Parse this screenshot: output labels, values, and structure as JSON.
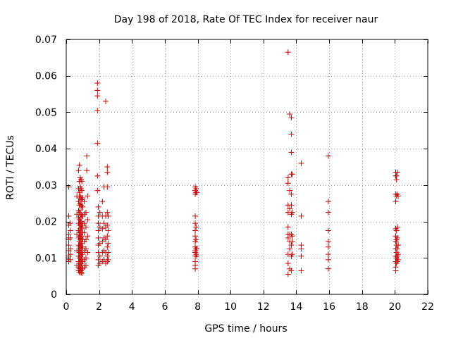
{
  "chart_data": {
    "type": "scatter",
    "title": "Day 198 of 2018, Rate Of TEC Index for receiver naur",
    "xlabel": "GPS time / hours",
    "ylabel": "ROTI / TECUs",
    "xlim": [
      0,
      22
    ],
    "ylim": [
      0,
      0.07
    ],
    "x_ticks": [
      0,
      2,
      4,
      6,
      8,
      10,
      12,
      14,
      16,
      18,
      20,
      22
    ],
    "y_ticks": [
      0,
      0.01,
      0.02,
      0.03,
      0.04,
      0.05,
      0.06,
      0.07
    ],
    "x_tick_labels": [
      "0",
      "2",
      "4",
      "6",
      "8",
      "10",
      "12",
      "14",
      "16",
      "18",
      "20",
      "22"
    ],
    "y_tick_labels": [
      "0",
      "0.01",
      "0.02",
      "0.03",
      "0.04",
      "0.05",
      "0.06",
      "0.07"
    ],
    "grid": true,
    "marker": "+",
    "marker_color": "#cc0000",
    "series": [
      {
        "name": "ROTI",
        "points": [
          [
            0.15,
            0.0295
          ],
          [
            0.15,
            0.0215
          ],
          [
            0.15,
            0.019
          ],
          [
            0.15,
            0.0165
          ],
          [
            0.15,
            0.0155
          ],
          [
            0.15,
            0.015
          ],
          [
            0.15,
            0.0135
          ],
          [
            0.15,
            0.012
          ],
          [
            0.15,
            0.0105
          ],
          [
            0.15,
            0.0095
          ],
          [
            0.15,
            0.009
          ],
          [
            0.25,
            0.0195
          ],
          [
            0.25,
            0.0175
          ],
          [
            0.25,
            0.0155
          ],
          [
            0.25,
            0.0125
          ],
          [
            0.25,
            0.011
          ],
          [
            0.25,
            0.0095
          ],
          [
            0.65,
            0.027
          ],
          [
            0.65,
            0.022
          ],
          [
            0.65,
            0.0165
          ],
          [
            0.65,
            0.012
          ],
          [
            0.65,
            0.008
          ],
          [
            0.75,
            0.034
          ],
          [
            0.75,
            0.029
          ],
          [
            0.75,
            0.0255
          ],
          [
            0.75,
            0.023
          ],
          [
            0.75,
            0.021
          ],
          [
            0.75,
            0.0195
          ],
          [
            0.75,
            0.0175
          ],
          [
            0.75,
            0.0155
          ],
          [
            0.75,
            0.0135
          ],
          [
            0.75,
            0.012
          ],
          [
            0.75,
            0.0105
          ],
          [
            0.75,
            0.009
          ],
          [
            0.75,
            0.0075
          ],
          [
            0.75,
            0.0065
          ],
          [
            0.8,
            0.0355
          ],
          [
            0.8,
            0.031
          ],
          [
            0.8,
            0.028
          ],
          [
            0.8,
            0.0265
          ],
          [
            0.8,
            0.0245
          ],
          [
            0.8,
            0.0225
          ],
          [
            0.8,
            0.0205
          ],
          [
            0.8,
            0.019
          ],
          [
            0.8,
            0.017
          ],
          [
            0.8,
            0.016
          ],
          [
            0.8,
            0.0145
          ],
          [
            0.8,
            0.013
          ],
          [
            0.8,
            0.0115
          ],
          [
            0.8,
            0.01
          ],
          [
            0.8,
            0.0085
          ],
          [
            0.8,
            0.007
          ],
          [
            0.8,
            0.006
          ],
          [
            0.85,
            0.032
          ],
          [
            0.85,
            0.0295
          ],
          [
            0.85,
            0.027
          ],
          [
            0.85,
            0.025
          ],
          [
            0.85,
            0.023
          ],
          [
            0.85,
            0.021
          ],
          [
            0.85,
            0.0195
          ],
          [
            0.85,
            0.018
          ],
          [
            0.85,
            0.0165
          ],
          [
            0.85,
            0.015
          ],
          [
            0.85,
            0.0135
          ],
          [
            0.85,
            0.012
          ],
          [
            0.85,
            0.0105
          ],
          [
            0.85,
            0.009
          ],
          [
            0.85,
            0.0075
          ],
          [
            0.85,
            0.0065
          ],
          [
            0.9,
            0.0315
          ],
          [
            0.9,
            0.029
          ],
          [
            0.9,
            0.0265
          ],
          [
            0.9,
            0.0245
          ],
          [
            0.9,
            0.022
          ],
          [
            0.9,
            0.02
          ],
          [
            0.9,
            0.0185
          ],
          [
            0.9,
            0.017
          ],
          [
            0.9,
            0.0155
          ],
          [
            0.9,
            0.014
          ],
          [
            0.9,
            0.0125
          ],
          [
            0.9,
            0.011
          ],
          [
            0.9,
            0.0095
          ],
          [
            0.9,
            0.008
          ],
          [
            0.9,
            0.0065
          ],
          [
            0.9,
            0.006
          ],
          [
            0.95,
            0.031
          ],
          [
            0.95,
            0.0285
          ],
          [
            0.95,
            0.026
          ],
          [
            0.95,
            0.024
          ],
          [
            0.95,
            0.0215
          ],
          [
            0.95,
            0.0195
          ],
          [
            0.95,
            0.018
          ],
          [
            0.95,
            0.016
          ],
          [
            0.95,
            0.0145
          ],
          [
            0.95,
            0.013
          ],
          [
            0.95,
            0.0115
          ],
          [
            0.95,
            0.01
          ],
          [
            0.95,
            0.0085
          ],
          [
            0.95,
            0.007
          ],
          [
            0.95,
            0.0058
          ],
          [
            1.0,
            0.0265
          ],
          [
            1.0,
            0.024
          ],
          [
            1.0,
            0.0215
          ],
          [
            1.0,
            0.019
          ],
          [
            1.0,
            0.017
          ],
          [
            1.0,
            0.015
          ],
          [
            1.0,
            0.013
          ],
          [
            1.0,
            0.011
          ],
          [
            1.0,
            0.009
          ],
          [
            1.0,
            0.007
          ],
          [
            1.1,
            0.0255
          ],
          [
            1.1,
            0.022
          ],
          [
            1.1,
            0.0195
          ],
          [
            1.1,
            0.017
          ],
          [
            1.1,
            0.0145
          ],
          [
            1.1,
            0.012
          ],
          [
            1.1,
            0.0095
          ],
          [
            1.1,
            0.0075
          ],
          [
            1.2,
            0.0225
          ],
          [
            1.2,
            0.0185
          ],
          [
            1.2,
            0.015
          ],
          [
            1.2,
            0.0125
          ],
          [
            1.2,
            0.01
          ],
          [
            1.2,
            0.008
          ],
          [
            1.25,
            0.038
          ],
          [
            1.25,
            0.034
          ],
          [
            1.3,
            0.027
          ],
          [
            1.3,
            0.0205
          ],
          [
            1.3,
            0.016
          ],
          [
            1.3,
            0.0115
          ],
          [
            1.9,
            0.058
          ],
          [
            1.9,
            0.056
          ],
          [
            1.9,
            0.0545
          ],
          [
            1.9,
            0.0505
          ],
          [
            1.9,
            0.0415
          ],
          [
            1.9,
            0.0325
          ],
          [
            1.9,
            0.0285
          ],
          [
            1.95,
            0.024
          ],
          [
            1.95,
            0.0215
          ],
          [
            1.95,
            0.0195
          ],
          [
            1.95,
            0.0175
          ],
          [
            1.95,
            0.0155
          ],
          [
            1.95,
            0.0135
          ],
          [
            1.95,
            0.0115
          ],
          [
            1.95,
            0.0095
          ],
          [
            1.95,
            0.008
          ],
          [
            2.05,
            0.0225
          ],
          [
            2.05,
            0.0185
          ],
          [
            2.05,
            0.014
          ],
          [
            2.05,
            0.0105
          ],
          [
            2.05,
            0.0085
          ],
          [
            2.2,
            0.0255
          ],
          [
            2.2,
            0.0215
          ],
          [
            2.2,
            0.018
          ],
          [
            2.2,
            0.0145
          ],
          [
            2.2,
            0.0115
          ],
          [
            2.2,
            0.009
          ],
          [
            2.3,
            0.0295
          ],
          [
            2.3,
            0.0195
          ],
          [
            2.3,
            0.0155
          ],
          [
            2.3,
            0.012
          ],
          [
            2.3,
            0.0095
          ],
          [
            2.4,
            0.053
          ],
          [
            2.4,
            0.0215
          ],
          [
            2.4,
            0.0185
          ],
          [
            2.4,
            0.015
          ],
          [
            2.4,
            0.0115
          ],
          [
            2.4,
            0.0085
          ],
          [
            2.5,
            0.035
          ],
          [
            2.5,
            0.0335
          ],
          [
            2.5,
            0.0295
          ],
          [
            2.5,
            0.0225
          ],
          [
            2.5,
            0.019
          ],
          [
            2.5,
            0.016
          ],
          [
            2.5,
            0.013
          ],
          [
            2.5,
            0.0105
          ],
          [
            2.5,
            0.009
          ],
          [
            2.55,
            0.0215
          ],
          [
            2.55,
            0.0175
          ],
          [
            2.55,
            0.014
          ],
          [
            2.55,
            0.0115
          ],
          [
            2.55,
            0.0095
          ],
          [
            7.85,
            0.0295
          ],
          [
            7.85,
            0.0285
          ],
          [
            7.85,
            0.0275
          ],
          [
            7.85,
            0.0215
          ],
          [
            7.85,
            0.0195
          ],
          [
            7.85,
            0.0175
          ],
          [
            7.85,
            0.016
          ],
          [
            7.85,
            0.0145
          ],
          [
            7.85,
            0.013
          ],
          [
            7.85,
            0.012
          ],
          [
            7.85,
            0.0115
          ],
          [
            7.85,
            0.0105
          ],
          [
            7.85,
            0.009
          ],
          [
            7.85,
            0.008
          ],
          [
            7.85,
            0.007
          ],
          [
            7.9,
            0.029
          ],
          [
            7.9,
            0.028
          ],
          [
            7.9,
            0.0185
          ],
          [
            7.9,
            0.015
          ],
          [
            7.9,
            0.0125
          ],
          [
            7.9,
            0.011
          ],
          [
            7.95,
            0.028
          ],
          [
            7.95,
            0.0125
          ],
          [
            7.95,
            0.0105
          ],
          [
            13.5,
            0.0665
          ],
          [
            13.5,
            0.032
          ],
          [
            13.5,
            0.0305
          ],
          [
            13.5,
            0.0245
          ],
          [
            13.5,
            0.0225
          ],
          [
            13.5,
            0.0185
          ],
          [
            13.5,
            0.0165
          ],
          [
            13.5,
            0.0155
          ],
          [
            13.5,
            0.011
          ],
          [
            13.5,
            0.0085
          ],
          [
            13.5,
            0.0055
          ],
          [
            13.6,
            0.0495
          ],
          [
            13.6,
            0.0285
          ],
          [
            13.6,
            0.0235
          ],
          [
            13.6,
            0.0165
          ],
          [
            13.6,
            0.0145
          ],
          [
            13.6,
            0.0125
          ],
          [
            13.6,
            0.007
          ],
          [
            13.7,
            0.0485
          ],
          [
            13.7,
            0.044
          ],
          [
            13.7,
            0.039
          ],
          [
            13.7,
            0.033
          ],
          [
            13.7,
            0.0275
          ],
          [
            13.7,
            0.0245
          ],
          [
            13.7,
            0.022
          ],
          [
            13.7,
            0.0165
          ],
          [
            13.7,
            0.0135
          ],
          [
            13.7,
            0.0105
          ],
          [
            13.7,
            0.0065
          ],
          [
            13.75,
            0.033
          ],
          [
            13.75,
            0.0225
          ],
          [
            13.75,
            0.016
          ],
          [
            13.75,
            0.0145
          ],
          [
            13.75,
            0.011
          ],
          [
            14.3,
            0.036
          ],
          [
            14.3,
            0.0215
          ],
          [
            14.3,
            0.0135
          ],
          [
            14.3,
            0.0125
          ],
          [
            14.3,
            0.0105
          ],
          [
            14.3,
            0.0065
          ],
          [
            15.95,
            0.038
          ],
          [
            15.95,
            0.0255
          ],
          [
            15.95,
            0.0225
          ],
          [
            15.95,
            0.0175
          ],
          [
            15.95,
            0.0145
          ],
          [
            15.95,
            0.013
          ],
          [
            15.95,
            0.011
          ],
          [
            15.95,
            0.0095
          ],
          [
            15.95,
            0.007
          ],
          [
            20.05,
            0.0335
          ],
          [
            20.05,
            0.0325
          ],
          [
            20.05,
            0.0275
          ],
          [
            20.05,
            0.0255
          ],
          [
            20.05,
            0.018
          ],
          [
            20.05,
            0.016
          ],
          [
            20.05,
            0.0145
          ],
          [
            20.05,
            0.0125
          ],
          [
            20.05,
            0.0105
          ],
          [
            20.05,
            0.009
          ],
          [
            20.05,
            0.0075
          ],
          [
            20.05,
            0.0065
          ],
          [
            20.1,
            0.0325
          ],
          [
            20.1,
            0.0315
          ],
          [
            20.1,
            0.027
          ],
          [
            20.1,
            0.0175
          ],
          [
            20.1,
            0.015
          ],
          [
            20.1,
            0.0135
          ],
          [
            20.1,
            0.0115
          ],
          [
            20.1,
            0.01
          ],
          [
            20.1,
            0.0085
          ],
          [
            20.15,
            0.0335
          ],
          [
            20.15,
            0.0275
          ],
          [
            20.15,
            0.0185
          ],
          [
            20.15,
            0.0155
          ],
          [
            20.15,
            0.0125
          ],
          [
            20.15,
            0.0105
          ],
          [
            20.15,
            0.009
          ],
          [
            20.2,
            0.027
          ],
          [
            20.2,
            0.0135
          ],
          [
            20.2,
            0.011
          ],
          [
            20.2,
            0.0095
          ]
        ]
      }
    ]
  }
}
